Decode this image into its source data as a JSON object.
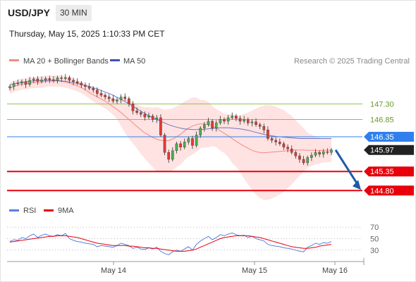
{
  "header": {
    "symbol": "USD/JPY",
    "timeframe": "30 MIN",
    "datetime": "Thursday, May 15, 2025 1:10:33 PM CET"
  },
  "legend": {
    "ma20": "MA 20 + Bollinger Bands",
    "ma50": "MA 50",
    "credit": "Research © 2025 Trading Central",
    "rsi": "RSI",
    "rsi_ma": "9MA"
  },
  "colors": {
    "candle_up": "#4caf50",
    "candle_down": "#e53935",
    "bollinger_fill": "#ffd5d5",
    "ma20": "#f28b82",
    "ma50": "#3f51b5",
    "pivot": "#2f80ed",
    "support": "#e8000b",
    "resistance": "#8bc34a",
    "arrow": "#1f5aa6",
    "rsi_line": "#5b7fde",
    "rsi_ma_line": "#e8000b"
  },
  "chart_data": [
    {
      "type": "candlestick",
      "ylim": [
        144.5,
        148.1
      ],
      "x_ticks": [
        "May 14",
        "May 15",
        "May 16"
      ],
      "levels": [
        {
          "value": 147.3,
          "label": "147.30",
          "kind": "resistance"
        },
        {
          "value": 146.85,
          "label": "146.85",
          "kind": "resistance"
        },
        {
          "value": 146.35,
          "label": "146.35",
          "kind": "pivot"
        },
        {
          "value": 145.35,
          "label": "145.35",
          "kind": "support"
        },
        {
          "value": 144.8,
          "label": "144.80",
          "kind": "support"
        }
      ],
      "last_price": {
        "value": 145.97,
        "label": "145.97"
      },
      "projection": {
        "from": 145.97,
        "to": 144.8
      },
      "closes": [
        147.8,
        147.88,
        147.9,
        147.94,
        147.86,
        147.98,
        148.02,
        147.95,
        147.99,
        148.03,
        148.0,
        147.97,
        148.05,
        148.03,
        148.06,
        147.98,
        147.94,
        147.9,
        147.84,
        147.8,
        147.75,
        147.7,
        147.6,
        147.55,
        147.5,
        147.45,
        147.38,
        147.42,
        147.5,
        147.45,
        147.3,
        147.1,
        147.05,
        147.0,
        146.92,
        146.95,
        146.85,
        146.9,
        146.4,
        145.9,
        145.7,
        145.95,
        146.15,
        146.05,
        146.2,
        146.3,
        146.1,
        146.4,
        146.6,
        146.7,
        146.8,
        146.6,
        146.75,
        146.85,
        146.8,
        146.9,
        146.95,
        146.88,
        146.8,
        146.85,
        146.75,
        146.78,
        146.7,
        146.65,
        146.55,
        146.3,
        146.25,
        146.2,
        146.15,
        146.05,
        146.0,
        145.9,
        145.8,
        145.7,
        145.6,
        145.75,
        145.82,
        145.9,
        145.85,
        145.92,
        145.9,
        145.97
      ],
      "ma20": [
        147.75,
        147.8,
        147.84,
        147.87,
        147.88,
        147.9,
        147.91,
        147.92,
        147.93,
        147.95,
        147.96,
        147.96,
        147.96,
        147.95,
        147.93,
        147.9,
        147.86,
        147.82,
        147.77,
        147.7,
        147.63,
        147.56,
        147.5,
        147.44,
        147.38,
        147.3,
        147.22,
        147.14,
        147.05,
        146.95,
        146.85,
        146.75,
        146.65,
        146.55,
        146.46,
        146.4,
        146.33,
        146.28,
        146.25,
        146.23,
        146.24,
        146.28,
        146.35,
        146.42,
        146.52,
        146.6,
        146.66,
        146.7,
        146.72,
        146.72,
        146.7,
        146.66,
        146.6,
        146.52,
        146.45,
        146.38,
        146.3,
        146.22,
        146.15,
        146.08,
        146.02,
        145.96,
        145.92,
        145.9,
        145.89,
        145.9,
        145.91,
        145.92,
        145.93,
        145.94,
        145.95,
        145.96,
        145.97,
        145.97,
        145.97,
        145.96,
        145.96,
        145.95,
        145.95,
        145.96,
        145.96,
        145.97
      ],
      "ma50": [
        147.85,
        147.88,
        147.9,
        147.92,
        147.94,
        147.95,
        147.96,
        147.97,
        147.97,
        147.98,
        147.98,
        147.98,
        147.97,
        147.96,
        147.95,
        147.93,
        147.91,
        147.89,
        147.86,
        147.83,
        147.8,
        147.77,
        147.73,
        147.69,
        147.64,
        147.6,
        147.55,
        147.49,
        147.43,
        147.37,
        147.3,
        147.23,
        147.16,
        147.09,
        147.02,
        146.96,
        146.9,
        146.85,
        146.8,
        146.75,
        146.7,
        146.66,
        146.63,
        146.6,
        146.58,
        146.57,
        146.56,
        146.56,
        146.56,
        146.57,
        146.58,
        146.59,
        146.6,
        146.61,
        146.61,
        146.61,
        146.6,
        146.59,
        146.58,
        146.56,
        146.54,
        146.51,
        146.48,
        146.45,
        146.42,
        146.4,
        146.38,
        146.36,
        146.35,
        146.34,
        146.33,
        146.32,
        146.31,
        146.3,
        146.3,
        146.3,
        146.3,
        146.3,
        146.3,
        146.3,
        146.3,
        146.3
      ]
    },
    {
      "type": "line",
      "ylim": [
        15,
        85
      ],
      "y_ticks": [
        {
          "value": 70,
          "label": "70"
        },
        {
          "value": 50,
          "label": "50"
        },
        {
          "value": 30,
          "label": "30"
        }
      ],
      "series": [
        {
          "name": "RSI",
          "values": [
            45,
            48,
            47,
            52,
            50,
            55,
            58,
            52,
            56,
            58,
            55,
            54,
            57,
            55,
            59,
            50,
            47,
            45,
            44,
            42,
            41,
            40,
            36,
            38,
            37,
            36,
            35,
            38,
            42,
            40,
            38,
            33,
            35,
            32,
            31,
            34,
            32,
            35,
            28,
            24,
            22,
            27,
            30,
            28,
            32,
            36,
            30,
            40,
            46,
            50,
            54,
            48,
            52,
            57,
            55,
            58,
            60,
            57,
            55,
            56,
            52,
            54,
            50,
            48,
            46,
            40,
            38,
            37,
            36,
            34,
            33,
            32,
            30,
            28,
            27,
            35,
            38,
            42,
            40,
            43,
            42,
            45
          ]
        },
        {
          "name": "9MA",
          "values": [
            44,
            45,
            46,
            47,
            48,
            49,
            50,
            51,
            52,
            53,
            54,
            54,
            55,
            55,
            55,
            54,
            53,
            52,
            50,
            48,
            46,
            44,
            42,
            41,
            40,
            39,
            38,
            38,
            38,
            38,
            37,
            37,
            36,
            35,
            34,
            34,
            33,
            33,
            32,
            31,
            30,
            29,
            28,
            28,
            28,
            29,
            30,
            32,
            35,
            38,
            41,
            44,
            47,
            50,
            52,
            53,
            54,
            55,
            55,
            55,
            55,
            54,
            53,
            52,
            50,
            48,
            46,
            44,
            42,
            40,
            38,
            36,
            35,
            34,
            33,
            33,
            34,
            35,
            37,
            38,
            39,
            40
          ]
        }
      ]
    }
  ]
}
